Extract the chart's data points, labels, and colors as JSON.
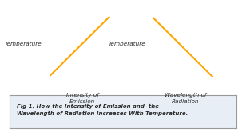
{
  "orange_color": "#FFA500",
  "axis_color": "#2a2a2a",
  "text_color": "#2a2a2a",
  "caption_bg": "#e8eef5",
  "caption_border": "#999999",
  "left_xlabel": "Intensity of\nEmission",
  "right_xlabel": "Wavelength of\nRadiation",
  "ylabel": "Temperature",
  "caption_line1": "Fig 1. How the Intensity of Emission and  the",
  "caption_line2": "Wavelength of Radiation Increases With Temperature.",
  "caption_fontsize": 5.0,
  "label_fontsize": 5.2,
  "ylabel_fontsize": 5.2,
  "line_lw": 1.5,
  "axis_lw": 1.2
}
